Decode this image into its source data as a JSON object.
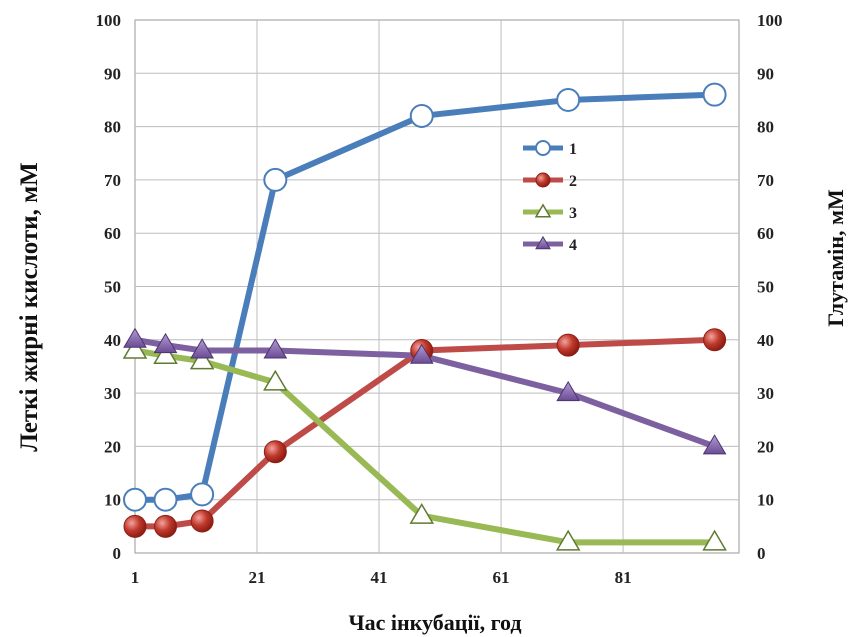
{
  "chart_data": {
    "type": "line",
    "title": "",
    "xlabel": "Час інкубації,  год",
    "ylabel_left": "Леткі жирні кислоти, мМ",
    "ylabel_right": "Глутамін, мМ",
    "xlim": [
      1,
      100
    ],
    "ylim": [
      0,
      100
    ],
    "x_ticks": [
      "1",
      "21",
      "41",
      "61",
      "81"
    ],
    "y_ticks": [
      "0",
      "10",
      "20",
      "30",
      "40",
      "50",
      "60",
      "70",
      "80",
      "90",
      "100"
    ],
    "grid": true,
    "legend_position": "center-right",
    "series": [
      {
        "name": "1",
        "color": "#4A7EBB",
        "marker": "circle-open",
        "x": [
          1,
          6,
          12,
          24,
          48,
          72,
          96
        ],
        "y": [
          10,
          10,
          11,
          70,
          82,
          85,
          86
        ]
      },
      {
        "name": "2",
        "color": "#BE4B48",
        "marker": "circle-filled",
        "x": [
          1,
          6,
          12,
          24,
          48,
          72,
          96
        ],
        "y": [
          5,
          5,
          6,
          19,
          38,
          39,
          40
        ]
      },
      {
        "name": "3",
        "color": "#98B954",
        "marker": "triangle-open",
        "x": [
          1,
          6,
          12,
          24,
          48,
          72,
          96
        ],
        "y": [
          38,
          37,
          36,
          32,
          7,
          2,
          2
        ]
      },
      {
        "name": "4",
        "color": "#7D60A0",
        "marker": "triangle-filled",
        "x": [
          1,
          6,
          12,
          24,
          48,
          72,
          96
        ],
        "y": [
          40,
          39,
          38,
          38,
          37,
          30,
          20
        ]
      }
    ]
  }
}
